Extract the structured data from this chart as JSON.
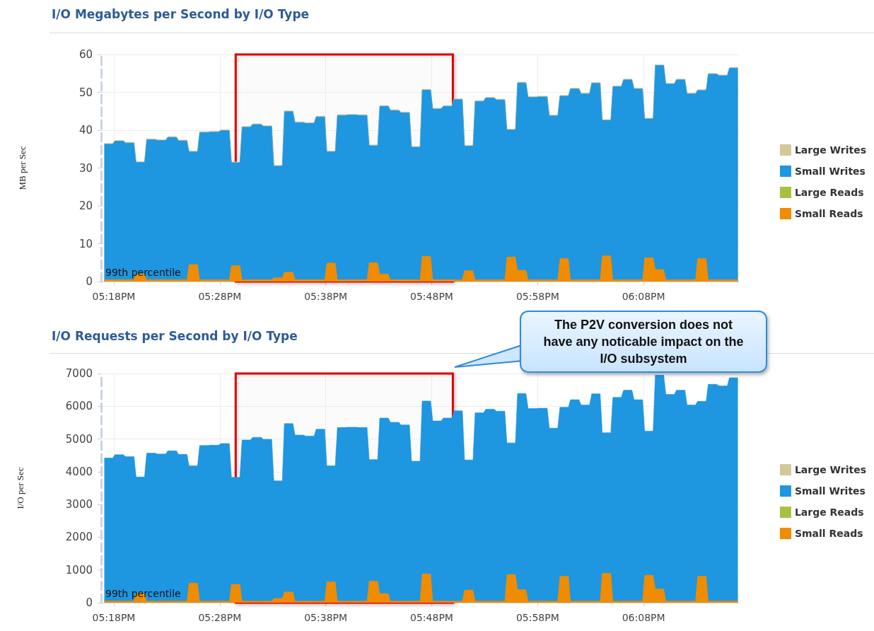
{
  "chart_data": [
    {
      "type": "area",
      "title": "I/O Megabytes per Second by I/O Type",
      "ylabel": "MB per Sec",
      "stacked": true,
      "grid": true,
      "legend": "right",
      "xlim": [
        17.28,
        18.2833
      ],
      "xticks": [
        {
          "value": 17.3,
          "label": "05:18PM"
        },
        {
          "value": 17.4667,
          "label": "05:28PM"
        },
        {
          "value": 17.6333,
          "label": "05:38PM"
        },
        {
          "value": 17.8,
          "label": "05:48PM"
        },
        {
          "value": 17.9667,
          "label": "05:58PM"
        },
        {
          "value": 18.1333,
          "label": "06:08PM"
        }
      ],
      "ylim": [
        0,
        60
      ],
      "yticks": [
        0,
        10,
        20,
        30,
        40,
        50,
        60
      ],
      "annotations": [
        "99th percentile"
      ],
      "bands": [
        {
          "axis": "x",
          "from": 17.4917,
          "to": 17.8333,
          "color": "#e00000"
        }
      ],
      "x": [
        17.285,
        17.2983,
        17.3017,
        17.315,
        17.3183,
        17.3317,
        17.335,
        17.3483,
        17.3517,
        17.365,
        17.3683,
        17.3817,
        17.385,
        17.3983,
        17.4017,
        17.415,
        17.4183,
        17.4317,
        17.435,
        17.4483,
        17.4517,
        17.465,
        17.4683,
        17.4817,
        17.485,
        17.4983,
        17.5017,
        17.515,
        17.5183,
        17.5317,
        17.535,
        17.5483,
        17.5517,
        17.565,
        17.5683,
        17.5817,
        17.585,
        17.5983,
        17.6017,
        17.615,
        17.6183,
        17.6317,
        17.635,
        17.6483,
        17.6517,
        17.665,
        17.6683,
        17.6817,
        17.685,
        17.6983,
        17.7017,
        17.715,
        17.7183,
        17.7317,
        17.735,
        17.7483,
        17.7517,
        17.765,
        17.7683,
        17.7817,
        17.785,
        17.7983,
        17.8017,
        17.815,
        17.8183,
        17.8317,
        17.835,
        17.8483,
        17.8517,
        17.865,
        17.8683,
        17.8817,
        17.885,
        17.8983,
        17.9017,
        17.915,
        17.9183,
        17.9317,
        17.935,
        17.9483,
        17.9517,
        17.965,
        17.9683,
        17.9817,
        17.985,
        17.9983,
        18.0017,
        18.015,
        18.0183,
        18.0317,
        18.035,
        18.0483,
        18.0517,
        18.065,
        18.0683,
        18.0817,
        18.085,
        18.0983,
        18.1017,
        18.115,
        18.1183,
        18.1317,
        18.135,
        18.1483,
        18.1517,
        18.165,
        18.1683,
        18.1817,
        18.185,
        18.1983,
        18.2017,
        18.215,
        18.2183,
        18.2317,
        18.235,
        18.2483,
        18.2517,
        18.265,
        18.2683,
        18.2817
      ],
      "series": [
        {
          "name": "Small Reads",
          "color": "#f08c00",
          "values": [
            0.5,
            0.5,
            0.5,
            0.5,
            0.5,
            0.5,
            2,
            2,
            0.5,
            0.5,
            0.5,
            0.5,
            0.5,
            0.5,
            0.5,
            0.5,
            4.5,
            4.5,
            0.5,
            0.5,
            0.5,
            0.5,
            0.5,
            0.5,
            4.2,
            4.2,
            0.5,
            0.5,
            0.5,
            0.5,
            0.5,
            0.5,
            1,
            1,
            2.5,
            2.5,
            0.5,
            0.5,
            0.5,
            0.5,
            0.5,
            0.5,
            4.9,
            4.9,
            0.5,
            0.5,
            0.5,
            0.5,
            0.5,
            0.5,
            5,
            5,
            2,
            2,
            0.5,
            0.5,
            0.5,
            0.5,
            0.5,
            0.5,
            6.7,
            6.7,
            0.5,
            0.5,
            0.5,
            0.5,
            0.5,
            0.5,
            2.9,
            2.9,
            0.5,
            0.5,
            0.5,
            0.5,
            0.5,
            0.5,
            6.5,
            6.5,
            3,
            3,
            0.5,
            0.5,
            0.5,
            0.5,
            0.5,
            0.5,
            6.1,
            6.1,
            0.5,
            0.5,
            0.5,
            0.5,
            0.5,
            0.5,
            6.8,
            6.8,
            0.5,
            0.5,
            0.5,
            0.5,
            0.5,
            0.5,
            6.3,
            6.3,
            3.2,
            3.2,
            0.5,
            0.5,
            0.5,
            0.5,
            0.5,
            0.5,
            6.1,
            6.1,
            0.5,
            0.5,
            0.5,
            0.5,
            0.5,
            0.5
          ]
        },
        {
          "name": "Large Reads",
          "color": "#a8c040",
          "values": [
            null,
            null,
            null,
            null,
            null,
            null,
            null,
            null,
            null,
            null,
            null,
            null,
            null,
            null,
            null,
            null,
            null,
            null,
            null,
            null,
            null,
            null,
            null,
            null,
            null,
            null,
            null,
            null,
            null,
            null,
            null,
            null,
            null,
            null,
            null,
            null,
            null,
            null,
            null,
            null,
            null,
            null,
            null,
            null,
            null,
            null,
            null,
            null,
            null,
            null,
            null,
            null,
            null,
            null,
            null,
            null,
            null,
            null,
            null,
            null,
            null,
            null,
            null,
            null,
            null,
            null,
            null,
            null,
            null,
            null,
            null,
            null,
            null,
            null,
            null,
            null,
            null,
            null,
            null,
            null,
            null,
            null,
            null,
            null,
            null,
            null,
            null,
            null,
            null,
            null,
            null,
            null,
            null,
            null,
            null,
            null,
            null,
            null,
            null,
            null,
            null,
            null,
            null,
            null,
            null,
            null,
            null,
            null,
            null,
            null,
            null,
            null,
            null,
            null,
            null,
            null,
            null,
            null,
            null,
            null
          ]
        },
        {
          "name": "Small Writes",
          "color": "#1e96e0",
          "values": [
            35.8,
            35.8,
            36.6,
            36.6,
            36.1,
            36.1,
            29.5,
            29.5,
            37.0,
            37.0,
            36.8,
            36.8,
            37.6,
            37.6,
            36.7,
            36.7,
            29.8,
            29.8,
            38.9,
            38.9,
            39.0,
            39.0,
            39.4,
            39.4,
            27.2,
            27.2,
            40.3,
            40.3,
            41.0,
            41.0,
            40.5,
            40.5,
            29.5,
            29.5,
            42.4,
            42.4,
            41.5,
            41.5,
            41.3,
            41.3,
            43.0,
            43.0,
            29.4,
            29.4,
            43.4,
            43.4,
            43.5,
            43.5,
            43.4,
            43.4,
            30.9,
            30.9,
            44.3,
            44.3,
            44.7,
            44.7,
            44.1,
            44.1,
            35.0,
            35.0,
            43.9,
            43.9,
            45.1,
            45.1,
            45.8,
            45.8,
            47.6,
            47.6,
            32.9,
            32.9,
            47.1,
            47.1,
            48.0,
            48.0,
            47.5,
            47.5,
            33.6,
            33.6,
            49.5,
            49.5,
            48.2,
            48.2,
            48.3,
            48.3,
            43.3,
            43.3,
            42.9,
            42.9,
            50.4,
            50.4,
            49.1,
            49.1,
            51.9,
            51.9,
            35.8,
            35.8,
            51.0,
            51.0,
            52.8,
            52.8,
            50.4,
            50.4,
            36.7,
            36.7,
            53.9,
            53.9,
            51.7,
            51.7,
            52.8,
            52.8,
            49.1,
            49.1,
            44.4,
            44.4,
            54.3,
            54.3,
            53.9,
            53.9,
            55.9,
            55.9
          ]
        },
        {
          "name": "Large Writes",
          "color": "#d2c89b",
          "values": [
            0.2,
            0.2,
            0.2,
            0.2,
            0.2,
            0.2,
            0.2,
            0.2,
            0.2,
            0.2,
            0.2,
            0.2,
            0.2,
            0.2,
            0.2,
            0.2,
            0.2,
            0.2,
            0.2,
            0.2,
            0.2,
            0.2,
            0.2,
            0.2,
            0.2,
            0.2,
            0.2,
            0.2,
            0.2,
            0.2,
            0.2,
            0.2,
            0.2,
            0.2,
            0.2,
            0.2,
            0.2,
            0.2,
            0.2,
            0.2,
            0.2,
            0.2,
            0.2,
            0.2,
            0.2,
            0.2,
            0.2,
            0.2,
            0.2,
            0.2,
            0.2,
            0.2,
            0.2,
            0.2,
            0.2,
            0.2,
            0.2,
            0.2,
            0.2,
            0.2,
            0.2,
            0.2,
            0.2,
            0.2,
            0.2,
            0.2,
            0.2,
            0.2,
            0.2,
            0.2,
            0.2,
            0.2,
            0.2,
            0.2,
            0.2,
            0.2,
            0.2,
            0.2,
            0.2,
            0.2,
            0.2,
            0.2,
            0.2,
            0.2,
            0.2,
            0.2,
            0.2,
            0.2,
            0.2,
            0.2,
            0.2,
            0.2,
            0.2,
            0.2,
            0.2,
            0.2,
            0.2,
            0.2,
            0.2,
            0.2,
            0.2,
            0.2,
            0.2,
            0.2,
            0.2,
            0.2,
            0.2,
            0.2,
            0.2,
            0.2,
            0.2,
            0.2,
            0.2,
            0.2,
            0.2,
            0.2,
            0.2,
            0.2,
            0.2,
            0.2
          ]
        }
      ]
    },
    {
      "type": "area",
      "title": "I/O Requests per Second by I/O Type",
      "ylabel": "I/O per Sec",
      "stacked": true,
      "grid": true,
      "legend": "right",
      "xlim": [
        17.28,
        18.2833
      ],
      "xticks": [
        {
          "value": 17.3,
          "label": "05:18PM"
        },
        {
          "value": 17.4667,
          "label": "05:28PM"
        },
        {
          "value": 17.6333,
          "label": "05:38PM"
        },
        {
          "value": 17.8,
          "label": "05:48PM"
        },
        {
          "value": 17.9667,
          "label": "05:58PM"
        },
        {
          "value": 18.1333,
          "label": "06:08PM"
        }
      ],
      "ylim": [
        0,
        7000
      ],
      "yticks": [
        0,
        1000,
        2000,
        3000,
        4000,
        5000,
        6000,
        7000
      ],
      "annotations": [
        "99th percentile",
        "The P2V conversion does not have any noticable impact on the I/O subsystem"
      ],
      "bands": [
        {
          "axis": "x",
          "from": 17.4917,
          "to": 17.8333,
          "color": "#e00000"
        }
      ],
      "x": [
        17.285,
        17.2983,
        17.3017,
        17.315,
        17.3183,
        17.3317,
        17.335,
        17.3483,
        17.3517,
        17.365,
        17.3683,
        17.3817,
        17.385,
        17.3983,
        17.4017,
        17.415,
        17.4183,
        17.4317,
        17.435,
        17.4483,
        17.4517,
        17.465,
        17.4683,
        17.4817,
        17.485,
        17.4983,
        17.5017,
        17.515,
        17.5183,
        17.5317,
        17.535,
        17.5483,
        17.5517,
        17.565,
        17.5683,
        17.5817,
        17.585,
        17.5983,
        17.6017,
        17.615,
        17.6183,
        17.6317,
        17.635,
        17.6483,
        17.6517,
        17.665,
        17.6683,
        17.6817,
        17.685,
        17.6983,
        17.7017,
        17.715,
        17.7183,
        17.7317,
        17.735,
        17.7483,
        17.7517,
        17.765,
        17.7683,
        17.7817,
        17.785,
        17.7983,
        17.8017,
        17.815,
        17.8183,
        17.8317,
        17.835,
        17.8483,
        17.8517,
        17.865,
        17.8683,
        17.8817,
        17.885,
        17.8983,
        17.9017,
        17.915,
        17.9183,
        17.9317,
        17.935,
        17.9483,
        17.9517,
        17.965,
        17.9683,
        17.9817,
        17.985,
        17.9983,
        18.0017,
        18.015,
        18.0183,
        18.0317,
        18.035,
        18.0483,
        18.0517,
        18.065,
        18.0683,
        18.0817,
        18.085,
        18.0983,
        18.1017,
        18.115,
        18.1183,
        18.1317,
        18.135,
        18.1483,
        18.1517,
        18.165,
        18.1683,
        18.1817,
        18.185,
        18.1983,
        18.2017,
        18.215,
        18.2183,
        18.2317,
        18.235,
        18.2483,
        18.2517,
        18.265,
        18.2683,
        18.2817
      ],
      "series": [
        {
          "name": "Small Reads",
          "color": "#f08c00",
          "values": [
            50,
            50,
            50,
            50,
            50,
            50,
            290,
            290,
            50,
            50,
            50,
            50,
            50,
            50,
            50,
            50,
            600,
            600,
            50,
            50,
            50,
            50,
            50,
            50,
            560,
            560,
            50,
            50,
            50,
            50,
            50,
            50,
            130,
            130,
            330,
            330,
            50,
            50,
            50,
            50,
            50,
            50,
            640,
            640,
            50,
            50,
            50,
            50,
            50,
            50,
            660,
            660,
            280,
            280,
            50,
            50,
            50,
            50,
            50,
            50,
            880,
            880,
            50,
            50,
            50,
            50,
            50,
            50,
            390,
            390,
            50,
            50,
            50,
            50,
            50,
            50,
            860,
            860,
            400,
            400,
            50,
            50,
            50,
            50,
            50,
            50,
            810,
            810,
            50,
            50,
            50,
            50,
            50,
            50,
            900,
            900,
            50,
            50,
            50,
            50,
            50,
            50,
            840,
            840,
            420,
            420,
            50,
            50,
            50,
            50,
            50,
            50,
            810,
            810,
            50,
            50,
            50,
            50,
            50,
            50
          ]
        },
        {
          "name": "Large Reads",
          "color": "#a8c040",
          "values": [
            null,
            null,
            null,
            null,
            null,
            null,
            null,
            null,
            null,
            null,
            null,
            null,
            null,
            null,
            null,
            null,
            null,
            null,
            null,
            null,
            null,
            null,
            null,
            null,
            null,
            null,
            null,
            null,
            null,
            null,
            null,
            null,
            null,
            null,
            null,
            null,
            null,
            null,
            null,
            null,
            null,
            null,
            null,
            null,
            null,
            null,
            null,
            null,
            null,
            null,
            null,
            null,
            null,
            null,
            null,
            null,
            null,
            null,
            null,
            null,
            null,
            null,
            null,
            null,
            null,
            null,
            null,
            null,
            null,
            null,
            null,
            null,
            null,
            null,
            null,
            null,
            null,
            null,
            null,
            null,
            null,
            null,
            null,
            null,
            null,
            null,
            null,
            null,
            null,
            null,
            null,
            null,
            null,
            null,
            null,
            null,
            null,
            null,
            null,
            null,
            null,
            null,
            null,
            null,
            null,
            null,
            null,
            null,
            null,
            null,
            null,
            null,
            null,
            null,
            null,
            null,
            null,
            null,
            null,
            null
          ]
        },
        {
          "name": "Small Writes",
          "color": "#1e96e0",
          "values": [
            4370,
            4370,
            4470,
            4470,
            4410,
            4410,
            3550,
            3550,
            4520,
            4520,
            4490,
            4490,
            4590,
            4590,
            4480,
            4480,
            3580,
            3580,
            4750,
            4750,
            4760,
            4760,
            4810,
            4810,
            3270,
            3270,
            4920,
            4920,
            5000,
            5000,
            4940,
            4940,
            3590,
            3590,
            5140,
            5140,
            5070,
            5070,
            5040,
            5040,
            5250,
            5250,
            3540,
            3540,
            5300,
            5300,
            5310,
            5310,
            5300,
            5300,
            3710,
            3710,
            5360,
            5360,
            5460,
            5460,
            5380,
            5380,
            4270,
            4270,
            5280,
            5280,
            5500,
            5500,
            5590,
            5590,
            5810,
            5810,
            3970,
            3970,
            5750,
            5750,
            5860,
            5860,
            5800,
            5800,
            4020,
            4020,
            5990,
            5990,
            5880,
            5880,
            5890,
            5890,
            5280,
            5280,
            5160,
            5160,
            6150,
            6150,
            5990,
            5990,
            6330,
            6330,
            4290,
            4290,
            6220,
            6220,
            6440,
            6440,
            6150,
            6150,
            4400,
            4400,
            6530,
            6530,
            6310,
            6310,
            6440,
            6440,
            5990,
            5990,
            5340,
            5340,
            6620,
            6620,
            6570,
            6570,
            6820,
            6820
          ]
        },
        {
          "name": "Large Writes",
          "color": "#d2c89b",
          "values": [
            null,
            null,
            null,
            null,
            null,
            null,
            null,
            null,
            null,
            null,
            null,
            null,
            null,
            null,
            null,
            null,
            null,
            null,
            null,
            null,
            null,
            null,
            null,
            null,
            null,
            null,
            null,
            null,
            null,
            null,
            null,
            null,
            null,
            null,
            null,
            null,
            null,
            null,
            null,
            null,
            null,
            null,
            null,
            null,
            null,
            null,
            null,
            null,
            null,
            null,
            null,
            null,
            null,
            null,
            null,
            null,
            null,
            null,
            null,
            null,
            null,
            null,
            null,
            null,
            null,
            null,
            null,
            null,
            null,
            null,
            null,
            null,
            null,
            null,
            null,
            null,
            null,
            null,
            null,
            null,
            null,
            null,
            null,
            null,
            null,
            null,
            null,
            null,
            null,
            null,
            null,
            null,
            null,
            null,
            null,
            null,
            null,
            null,
            null,
            null,
            null,
            null,
            null,
            null,
            null,
            null,
            null,
            null,
            null,
            null,
            null,
            null,
            null,
            null,
            null,
            null,
            null,
            null,
            null,
            null
          ]
        }
      ]
    }
  ]
}
